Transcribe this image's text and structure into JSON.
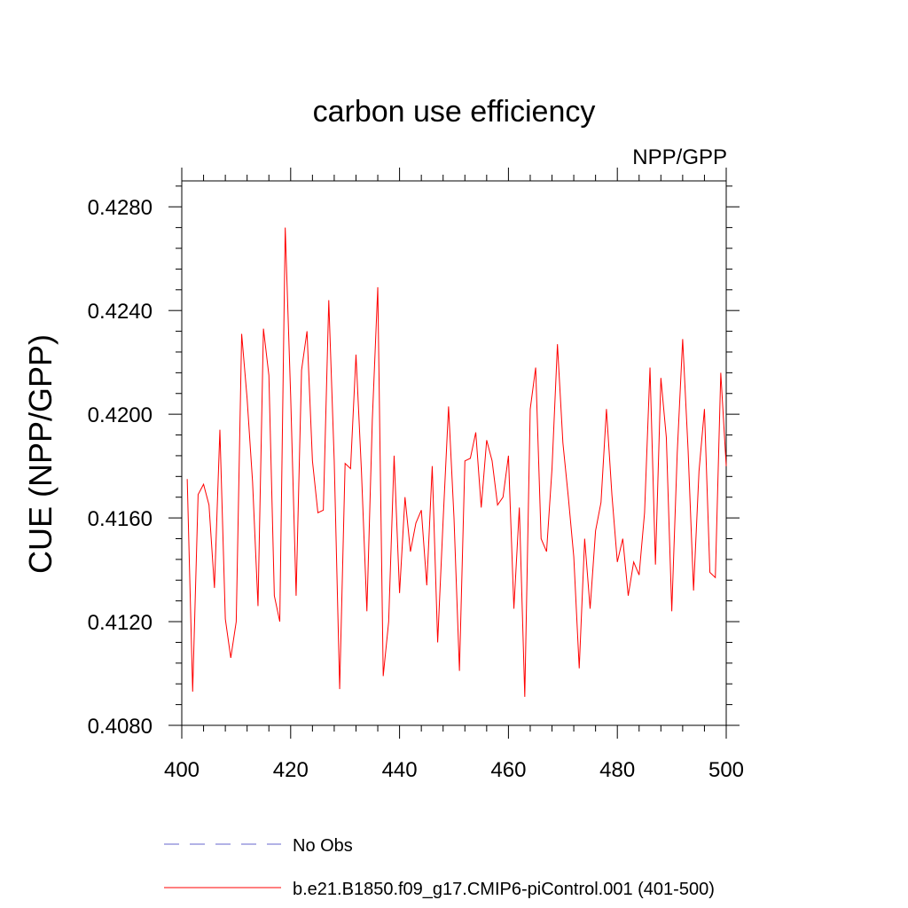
{
  "chart_data": {
    "type": "line",
    "title": "carbon use efficiency",
    "subtitle": "NPP/GPP",
    "xlabel": "",
    "ylabel": "CUE  (NPP/GPP)",
    "xlim": [
      400,
      500
    ],
    "ylim": [
      0.408,
      0.429
    ],
    "x_ticks": [
      "400",
      "420",
      "440",
      "460",
      "480",
      "500"
    ],
    "y_ticks": [
      "0.4080",
      "0.4120",
      "0.4160",
      "0.4200",
      "0.4240",
      "0.4280"
    ],
    "grid": false,
    "legend_position": "bottom",
    "series": [
      {
        "name": "No Obs",
        "color": "#6666cc",
        "dash": "dashed",
        "x": [],
        "values": []
      },
      {
        "name": "b.e21.B1850.f09_g17.CMIP6-piControl.001 (401-500)",
        "color": "#ff0000",
        "dash": "solid",
        "x": [
          401,
          402,
          403,
          404,
          405,
          406,
          407,
          408,
          409,
          410,
          411,
          412,
          413,
          414,
          415,
          416,
          417,
          418,
          419,
          420,
          421,
          422,
          423,
          424,
          425,
          426,
          427,
          428,
          429,
          430,
          431,
          432,
          433,
          434,
          435,
          436,
          437,
          438,
          439,
          440,
          441,
          442,
          443,
          444,
          445,
          446,
          447,
          448,
          449,
          450,
          451,
          452,
          453,
          454,
          455,
          456,
          457,
          458,
          459,
          460,
          461,
          462,
          463,
          464,
          465,
          466,
          467,
          468,
          469,
          470,
          471,
          472,
          473,
          474,
          475,
          476,
          477,
          478,
          479,
          480,
          481,
          482,
          483,
          484,
          485,
          486,
          487,
          488,
          489,
          490,
          491,
          492,
          493,
          494,
          495,
          496,
          497,
          498,
          499,
          500
        ],
        "values": [
          0.4175,
          0.4093,
          0.4169,
          0.4173,
          0.4165,
          0.4133,
          0.4194,
          0.4121,
          0.4106,
          0.412,
          0.4231,
          0.4206,
          0.4174,
          0.4126,
          0.4233,
          0.4215,
          0.413,
          0.412,
          0.4272,
          0.4207,
          0.413,
          0.4217,
          0.4232,
          0.4182,
          0.4162,
          0.4163,
          0.4244,
          0.4182,
          0.4094,
          0.4181,
          0.4179,
          0.4223,
          0.4178,
          0.4124,
          0.4198,
          0.4249,
          0.4099,
          0.412,
          0.4184,
          0.4131,
          0.4168,
          0.4147,
          0.4158,
          0.4163,
          0.4134,
          0.418,
          0.4112,
          0.4159,
          0.4203,
          0.416,
          0.4101,
          0.4182,
          0.4183,
          0.4193,
          0.4164,
          0.419,
          0.4182,
          0.4165,
          0.4168,
          0.4184,
          0.4125,
          0.4164,
          0.4091,
          0.4202,
          0.4218,
          0.4152,
          0.4147,
          0.4179,
          0.4227,
          0.4189,
          0.4168,
          0.4145,
          0.4102,
          0.4152,
          0.4125,
          0.4155,
          0.4166,
          0.4202,
          0.4169,
          0.4143,
          0.4152,
          0.413,
          0.4143,
          0.4138,
          0.4162,
          0.4218,
          0.4142,
          0.4214,
          0.4191,
          0.4124,
          0.4185,
          0.4229,
          0.4186,
          0.4132,
          0.4178,
          0.4202,
          0.4139,
          0.4137,
          0.4216,
          0.418
        ]
      }
    ]
  }
}
